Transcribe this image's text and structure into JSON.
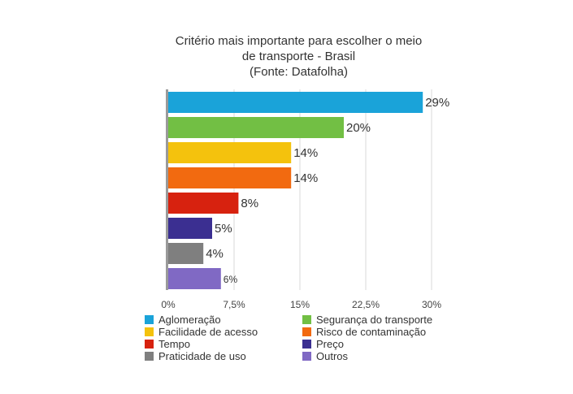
{
  "chart_data": {
    "type": "bar",
    "orientation": "horizontal",
    "title_lines": [
      "Critério mais importante para escolher o meio",
      "de transporte - Brasil",
      "(Fonte: Datafolha)"
    ],
    "categories": [
      "Aglomeração",
      "Segurança do transporte",
      "Facilidade de acesso",
      "Risco de contaminação",
      "Tempo",
      "Preço",
      "Praticidade de uso",
      "Outros"
    ],
    "values": [
      29,
      20,
      14,
      14,
      8,
      5,
      4,
      6
    ],
    "data_labels": [
      "29%",
      "20%",
      "14%",
      "14%",
      "8%",
      "5%",
      "4%",
      "6%"
    ],
    "colors": [
      "#1aa3d9",
      "#72bf44",
      "#f4c20d",
      "#f26a10",
      "#d7220f",
      "#3b2f91",
      "#7f7f7f",
      "#8069c4"
    ],
    "xlim": [
      0,
      30
    ],
    "x_ticks": [
      0,
      7.5,
      15,
      22.5,
      30
    ],
    "x_tick_labels": [
      "0%",
      "7,5%",
      "15%",
      "22,5%",
      "30%"
    ],
    "grid": true,
    "legend_placement": "bottom",
    "legend_columns": 2
  }
}
